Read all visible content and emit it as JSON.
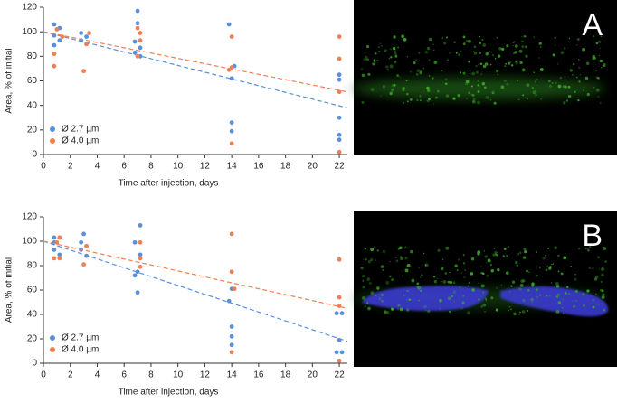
{
  "chart_data": [
    {
      "type": "scatter",
      "panel_label": "A",
      "x_label": "Time after injection, days",
      "y_label": "Area, % of initial",
      "xlim": [
        0,
        22.6
      ],
      "ylim": [
        0,
        120
      ],
      "xticks": [
        0,
        2,
        4,
        6,
        8,
        10,
        12,
        14,
        16,
        18,
        20,
        22
      ],
      "yticks": [
        0,
        20,
        40,
        60,
        80,
        100,
        120
      ],
      "legend": "lower left",
      "series": [
        {
          "name": "Ø 2.7 µm",
          "color": "#5b8fd9",
          "x": [
            0.8,
            1.2,
            0.8,
            1.2,
            0.8,
            2.8,
            3.2,
            2.8,
            3.2,
            7,
            7,
            6.8,
            7.2,
            6.8,
            7.2,
            13.8,
            14.2,
            14,
            14,
            14,
            22,
            22,
            22,
            22,
            22
          ],
          "y": [
            106,
            103,
            97,
            93,
            89,
            99,
            96,
            93,
            90,
            117,
            107,
            92,
            87,
            83,
            80,
            106,
            72,
            62,
            26,
            19,
            65,
            61,
            30,
            16,
            12
          ],
          "fit_x": [
            0,
            22.6
          ],
          "fit_y": [
            100,
            38
          ]
        },
        {
          "name": "Ø 4.0 µm",
          "color": "#f07f52",
          "x": [
            1,
            1.4,
            0.8,
            0.8,
            3.4,
            3.2,
            3,
            7,
            7.2,
            7.2,
            7,
            14,
            14,
            13.8,
            14,
            22,
            22,
            22,
            22
          ],
          "y": [
            102,
            96,
            82,
            72,
            99,
            90,
            68,
            103,
            99,
            93,
            80,
            96,
            71,
            69,
            9,
            96,
            78,
            51,
            2
          ],
          "fit_x": [
            0,
            22.6
          ],
          "fit_y": [
            100,
            51
          ]
        }
      ]
    },
    {
      "type": "scatter",
      "panel_label": "B",
      "x_label": "Time after injection, days",
      "y_label": "Area, % of initial",
      "xlim": [
        0,
        22.6
      ],
      "ylim": [
        0,
        120
      ],
      "xticks": [
        0,
        2,
        4,
        6,
        8,
        10,
        12,
        14,
        16,
        18,
        20,
        22
      ],
      "yticks": [
        0,
        20,
        40,
        60,
        80,
        100,
        120
      ],
      "legend": "lower left",
      "series": [
        {
          "name": "Ø 2.7 µm",
          "color": "#5b8fd9",
          "x": [
            0.8,
            1.2,
            0.8,
            0.8,
            1.2,
            3,
            2.8,
            3.2,
            2.8,
            3.2,
            7.2,
            6.8,
            7.2,
            7,
            6.8,
            7,
            14,
            13.8,
            14,
            14,
            14,
            21.8,
            22.2,
            22,
            21.8,
            22.2
          ],
          "y": [
            103,
            103,
            99,
            93,
            89,
            106,
            99,
            96,
            93,
            88,
            113,
            99,
            89,
            75,
            72,
            58,
            61,
            51,
            30,
            22,
            15,
            41,
            41,
            19,
            9,
            9
          ],
          "fit_x": [
            0,
            22.6
          ],
          "fit_y": [
            100,
            18
          ]
        },
        {
          "name": "Ø 4.0 µm",
          "color": "#f07f52",
          "x": [
            1.2,
            1,
            0.8,
            1.2,
            3.2,
            3,
            7.2,
            7.2,
            7.2,
            14,
            14,
            14.2,
            14,
            22,
            22,
            22,
            22
          ],
          "y": [
            103,
            99,
            86,
            86,
            96,
            81,
            99,
            86,
            79,
            106,
            75,
            61,
            9,
            85,
            54,
            47,
            2
          ],
          "fit_x": [
            0,
            22.6
          ],
          "fit_y": [
            100,
            45
          ]
        }
      ]
    }
  ]
}
